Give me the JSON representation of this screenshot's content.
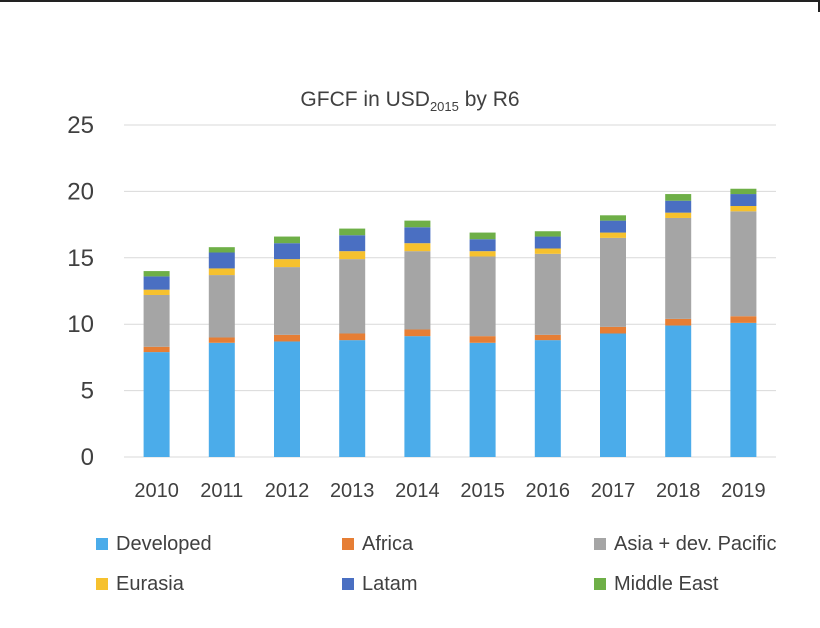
{
  "chart_data": {
    "type": "bar",
    "stacked": true,
    "title": {
      "main": "GFCF in USD",
      "sub": "2015",
      "suffix": " by R6"
    },
    "xlabel": "",
    "ylabel": "",
    "ylim": [
      0,
      25
    ],
    "yticks": [
      0,
      5,
      10,
      15,
      20,
      25
    ],
    "grid": true,
    "legend_position": "bottom",
    "categories": [
      "2010",
      "2011",
      "2012",
      "2013",
      "2014",
      "2015",
      "2016",
      "2017",
      "2018",
      "2019"
    ],
    "series": [
      {
        "name": "Developed",
        "color": "#4BACEA",
        "values": [
          7.9,
          8.6,
          8.7,
          8.8,
          9.1,
          8.6,
          8.8,
          9.3,
          9.9,
          10.1
        ]
      },
      {
        "name": "Africa",
        "color": "#E67E35",
        "values": [
          0.4,
          0.4,
          0.5,
          0.5,
          0.5,
          0.5,
          0.4,
          0.5,
          0.5,
          0.5
        ]
      },
      {
        "name": "Asia + dev. Pacific",
        "color": "#A5A5A5",
        "values": [
          3.9,
          4.7,
          5.1,
          5.6,
          5.9,
          6.0,
          6.1,
          6.7,
          7.6,
          7.9
        ]
      },
      {
        "name": "Eurasia",
        "color": "#F6C12E",
        "values": [
          0.4,
          0.5,
          0.6,
          0.6,
          0.6,
          0.4,
          0.4,
          0.4,
          0.4,
          0.4
        ]
      },
      {
        "name": "Latam",
        "color": "#4A6FC2",
        "values": [
          1.0,
          1.2,
          1.2,
          1.2,
          1.2,
          0.9,
          0.9,
          0.9,
          0.9,
          0.9
        ]
      },
      {
        "name": "Middle East",
        "color": "#6EAF47",
        "values": [
          0.4,
          0.4,
          0.5,
          0.5,
          0.5,
          0.5,
          0.4,
          0.4,
          0.5,
          0.4
        ]
      }
    ]
  }
}
